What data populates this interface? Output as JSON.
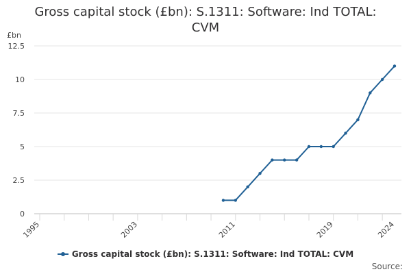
{
  "chart_data": {
    "type": "line",
    "title_lines": [
      "Gross capital stock (£bn): S.1311: Software: Ind TOTAL:",
      "CVM"
    ],
    "unit": "£bn",
    "source": "Source:",
    "x_ticks": [
      "1995",
      "2003",
      "2011",
      "2019",
      "2024"
    ],
    "y_ticks": [
      "0",
      "2.5",
      "5",
      "7.5",
      "10",
      "12.5"
    ],
    "xlim": [
      1995,
      2024
    ],
    "ylim": [
      0,
      12.5
    ],
    "grid": true,
    "legend_position": "bottom",
    "series": [
      {
        "name": "Gross capital stock (£bn): S.1311: Software: Ind TOTAL: CVM",
        "color": "#206095",
        "x": [
          2010,
          2011,
          2012,
          2013,
          2014,
          2015,
          2016,
          2017,
          2018,
          2019,
          2020,
          2021,
          2022,
          2023,
          2024
        ],
        "values": [
          1,
          1,
          2,
          3,
          4,
          4,
          4,
          5,
          5,
          5,
          6,
          7,
          9,
          10,
          11
        ]
      }
    ]
  }
}
